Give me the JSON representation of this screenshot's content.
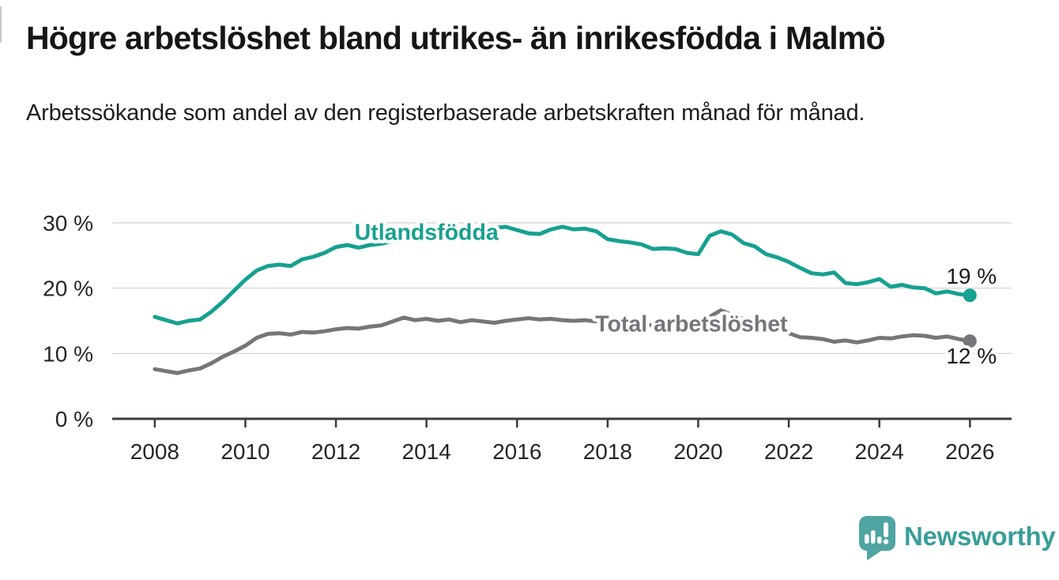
{
  "header": {
    "title": "Högre arbetslöshet bland utrikes- än inrikesfödda i Malmö",
    "subtitle": "Arbetssökande som andel av den registerbaserade arbetskraften månad för månad."
  },
  "branding": {
    "logo_text": "Newsworthy",
    "logo_mark_color": "#4fa5a1",
    "logo_text_color": "#389e98"
  },
  "chart_data": {
    "type": "line",
    "title": "Högre arbetslöshet bland utrikes- än inrikesfödda i Malmö",
    "subtitle": "Arbetssökande som andel av den registerbaserade arbetskraften månad för månad.",
    "xlabel": "",
    "ylabel": "",
    "unit": "%",
    "grid": "horizontal",
    "legend_position": "inline-labels",
    "xlim": [
      2007.06,
      2026.92
    ],
    "ylim": [
      0,
      30
    ],
    "yticks": [
      {
        "value": 0,
        "label": "0 %"
      },
      {
        "value": 10,
        "label": "10 %"
      },
      {
        "value": 20,
        "label": "20 %"
      },
      {
        "value": 30,
        "label": "30 %"
      }
    ],
    "xticks": [
      {
        "value": 2008,
        "label": "2008"
      },
      {
        "value": 2010,
        "label": "2010"
      },
      {
        "value": 2012,
        "label": "2012"
      },
      {
        "value": 2014,
        "label": "2014"
      },
      {
        "value": 2016,
        "label": "2016"
      },
      {
        "value": 2018,
        "label": "2018"
      },
      {
        "value": 2020,
        "label": "2020"
      },
      {
        "value": 2022,
        "label": "2022"
      },
      {
        "value": 2024,
        "label": "2024"
      },
      {
        "value": 2026,
        "label": "2026"
      }
    ],
    "x": [
      2008.0,
      2008.25,
      2008.5,
      2008.75,
      2009.0,
      2009.25,
      2009.5,
      2009.75,
      2010.0,
      2010.25,
      2010.5,
      2010.75,
      2011.0,
      2011.25,
      2011.5,
      2011.75,
      2012.0,
      2012.25,
      2012.5,
      2012.75,
      2013.0,
      2013.25,
      2013.5,
      2013.75,
      2014.0,
      2014.25,
      2014.5,
      2014.75,
      2015.0,
      2015.25,
      2015.5,
      2015.75,
      2016.0,
      2016.25,
      2016.5,
      2016.75,
      2017.0,
      2017.25,
      2017.5,
      2017.75,
      2018.0,
      2018.25,
      2018.5,
      2018.75,
      2019.0,
      2019.25,
      2019.5,
      2019.75,
      2020.0,
      2020.25,
      2020.5,
      2020.75,
      2021.0,
      2021.25,
      2021.5,
      2021.75,
      2022.0,
      2022.25,
      2022.5,
      2022.75,
      2023.0,
      2023.25,
      2023.5,
      2023.75,
      2024.0,
      2024.25,
      2024.5,
      2024.75,
      2025.0,
      2025.25,
      2025.5,
      2025.75,
      2026.0
    ],
    "series": [
      {
        "name": "Utlandsfödda",
        "color": "#17a090",
        "end_label": "19 %",
        "end_value": 19,
        "end_label_side": "above",
        "label_pos": {
          "x": 2014.0,
          "y": 28.3
        },
        "values": [
          15.6,
          15.1,
          14.6,
          15.0,
          15.2,
          16.4,
          17.9,
          19.6,
          21.3,
          22.7,
          23.4,
          23.6,
          23.4,
          24.4,
          24.8,
          25.4,
          26.3,
          26.6,
          26.2,
          26.6,
          26.8,
          27.2,
          27.4,
          27.7,
          28.0,
          28.4,
          28.2,
          28.7,
          28.9,
          29.0,
          29.2,
          29.4,
          28.9,
          28.4,
          28.3,
          29.0,
          29.4,
          29.0,
          29.1,
          28.7,
          27.5,
          27.2,
          27.0,
          26.7,
          26.0,
          26.1,
          26.0,
          25.4,
          25.2,
          28.0,
          28.7,
          28.2,
          26.9,
          26.4,
          25.2,
          24.7,
          24.0,
          23.1,
          22.3,
          22.1,
          22.4,
          20.8,
          20.6,
          20.9,
          21.4,
          20.2,
          20.5,
          20.1,
          20.0,
          19.2,
          19.5,
          19.1,
          18.9
        ]
      },
      {
        "name": "Total arbetslöshet",
        "color": "#75757a",
        "end_label": "12 %",
        "end_value": 12,
        "end_label_side": "below",
        "label_pos": {
          "x": 2019.85,
          "y": 14.3
        },
        "values": [
          7.6,
          7.3,
          7.0,
          7.4,
          7.7,
          8.5,
          9.5,
          10.3,
          11.2,
          12.4,
          13.0,
          13.1,
          12.9,
          13.3,
          13.2,
          13.4,
          13.7,
          13.9,
          13.8,
          14.1,
          14.3,
          14.9,
          15.5,
          15.1,
          15.3,
          15.0,
          15.2,
          14.8,
          15.1,
          14.9,
          14.7,
          15.0,
          15.2,
          15.4,
          15.2,
          15.3,
          15.1,
          15.0,
          15.1,
          14.9,
          14.8,
          14.6,
          14.7,
          14.5,
          14.3,
          14.2,
          14.3,
          14.0,
          14.1,
          15.6,
          16.6,
          15.9,
          15.3,
          14.8,
          14.2,
          13.6,
          13.1,
          12.5,
          12.4,
          12.2,
          11.8,
          12.0,
          11.7,
          12.0,
          12.4,
          12.3,
          12.6,
          12.8,
          12.7,
          12.4,
          12.6,
          12.2,
          11.9
        ]
      }
    ]
  }
}
